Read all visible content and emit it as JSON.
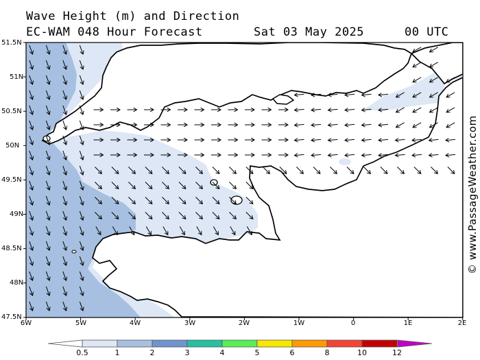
{
  "header": {
    "title_line1": "Wave Height (m) and Direction",
    "title_line2": "EC-WAM 048 Hour Forecast",
    "date": "Sat 03 May 2025",
    "time": "00 UTC"
  },
  "credit": "© www.PassageWeather.com",
  "axes": {
    "lat_labels": [
      "51.5N",
      "51N",
      "50.5N",
      "50N",
      "49.5N",
      "49N",
      "48.5N",
      "48N",
      "47.5N"
    ],
    "lon_labels": [
      "6W",
      "5W",
      "4W",
      "3W",
      "2W",
      "1W",
      "0",
      "1E",
      "2E"
    ]
  },
  "colorbar": {
    "labels": [
      "0.5",
      "1",
      "2",
      "3",
      "4",
      "5",
      "6",
      "8",
      "10",
      "12"
    ],
    "colors": [
      "#dde7f5",
      "#a7c0e1",
      "#6f94cf",
      "#27c0a2",
      "#57ef57",
      "#f8e800",
      "#ff9a00",
      "#f44436",
      "#c20000",
      "#c400c4"
    ]
  },
  "legend_colors": {
    "land": "#ffffff",
    "coast": "#000000",
    "sea_under_half": "#ffffff"
  }
}
